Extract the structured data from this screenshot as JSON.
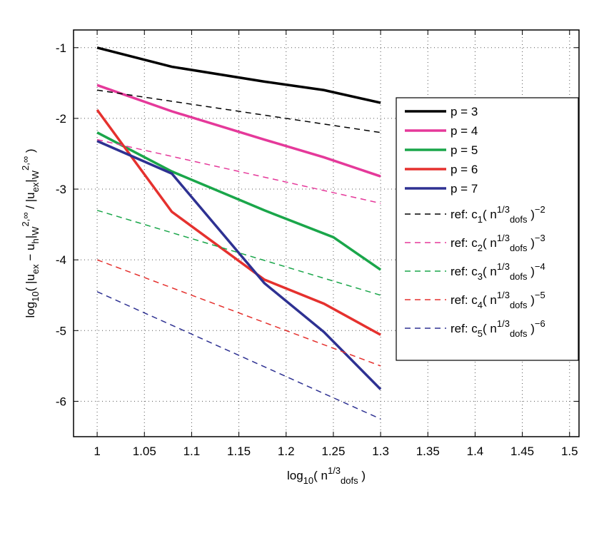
{
  "chart_data": {
    "type": "line",
    "xlabel": "log_{10}( n^{1/3}_{dofs} )",
    "ylabel": "log_{10}( |u_{ex} − u_{h}|_{W}^{2,∞} / |u_{ex}|_{W}^{2,∞} )",
    "xlim": [
      0.975,
      1.51
    ],
    "ylim": [
      -6.5,
      -0.75
    ],
    "xticks": [
      1,
      1.05,
      1.1,
      1.15,
      1.2,
      1.25,
      1.3,
      1.35,
      1.4,
      1.45,
      1.5
    ],
    "yticks": [
      -6,
      -5,
      -4,
      -3,
      -2,
      -1
    ],
    "grid": true,
    "legend": "upper right",
    "series": [
      {
        "name": "p = 3",
        "color": "#000000",
        "dashed": false,
        "x": [
          1,
          1.079,
          1.177,
          1.24,
          1.3
        ],
        "values": [
          -1.0,
          -1.27,
          -1.48,
          -1.6,
          -1.78
        ]
      },
      {
        "name": "p = 4",
        "color": "#e5399a",
        "dashed": false,
        "x": [
          1,
          1.079,
          1.177,
          1.24,
          1.3
        ],
        "values": [
          -1.53,
          -1.9,
          -2.3,
          -2.55,
          -2.82
        ]
      },
      {
        "name": "p = 5",
        "color": "#1aa64a",
        "dashed": false,
        "x": [
          1,
          1.079,
          1.177,
          1.25,
          1.3
        ],
        "values": [
          -2.2,
          -2.75,
          -3.3,
          -3.68,
          -4.14
        ]
      },
      {
        "name": "p = 6",
        "color": "#e5312e",
        "dashed": false,
        "x": [
          1,
          1.079,
          1.177,
          1.24,
          1.3
        ],
        "values": [
          -1.88,
          -3.32,
          -4.28,
          -4.62,
          -5.06
        ]
      },
      {
        "name": "p = 7",
        "color": "#2e3192",
        "dashed": false,
        "x": [
          1,
          1.079,
          1.177,
          1.24,
          1.3
        ],
        "values": [
          -2.32,
          -2.78,
          -4.33,
          -5.02,
          -5.83
        ]
      },
      {
        "name": "ref: c_{1}( n^{1/3}_{dofs} )^{−2}",
        "color": "#000000",
        "dashed": true,
        "x": [
          1,
          1.3
        ],
        "values": [
          -1.6,
          -2.2
        ]
      },
      {
        "name": "ref: c_{2}( n^{1/3}_{dofs} )^{−3}",
        "color": "#e5399a",
        "dashed": true,
        "x": [
          1,
          1.3
        ],
        "values": [
          -2.3,
          -3.2
        ]
      },
      {
        "name": "ref: c_{3}( n^{1/3}_{dofs} )^{−4}",
        "color": "#1aa64a",
        "dashed": true,
        "x": [
          1,
          1.3
        ],
        "values": [
          -3.3,
          -4.5
        ]
      },
      {
        "name": "ref: c_{4}( n^{1/3}_{dofs} )^{−5}",
        "color": "#e5312e",
        "dashed": true,
        "x": [
          1,
          1.3
        ],
        "values": [
          -4.0,
          -5.5
        ]
      },
      {
        "name": "ref: c_{5}( n^{1/3}_{dofs} )^{−6}",
        "color": "#2e3192",
        "dashed": true,
        "x": [
          1,
          1.3
        ],
        "values": [
          -4.45,
          -6.25
        ]
      }
    ]
  }
}
